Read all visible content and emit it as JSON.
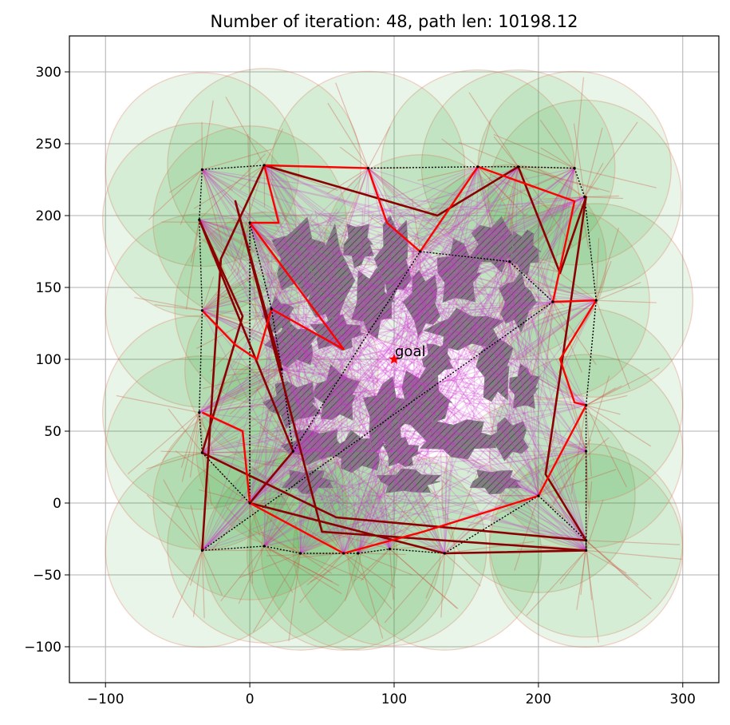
{
  "chart_data": {
    "type": "scatter",
    "title": "Number of iteration: 48, path len: 10198.12",
    "xlabel": "",
    "ylabel": "",
    "xlim": [
      -125,
      325
    ],
    "ylim": [
      -125,
      325
    ],
    "grid": true,
    "xticks": [
      -100,
      0,
      100,
      200,
      300
    ],
    "yticks": [
      -100,
      -50,
      0,
      50,
      100,
      150,
      200,
      250,
      300
    ],
    "goal": {
      "x": 100,
      "y": 100,
      "label": "goal"
    },
    "colors": {
      "obstacle_fill": "#808080",
      "obstacle_hatch": "#3a3a3a",
      "sensing_disc": "#2ca02c",
      "disc_edge": "#e07050",
      "visibility_rays": "#cc33cc",
      "path_primary": "#ff0000",
      "path_secondary": "#8b0000",
      "graph_edges": "#000000",
      "goal_marker": "#ff0000"
    },
    "sample_points": [
      {
        "x": -33,
        "y": -33
      },
      {
        "x": 10,
        "y": -30
      },
      {
        "x": 35,
        "y": -35
      },
      {
        "x": 65,
        "y": -35
      },
      {
        "x": 75,
        "y": -35
      },
      {
        "x": 97,
        "y": -32
      },
      {
        "x": 135,
        "y": -35
      },
      {
        "x": 200,
        "y": 5
      },
      {
        "x": 233,
        "y": -26
      },
      {
        "x": 233,
        "y": -33
      },
      {
        "x": 233,
        "y": 36
      },
      {
        "x": 233,
        "y": 68
      },
      {
        "x": 240,
        "y": 141
      },
      {
        "x": 232,
        "y": 213
      },
      {
        "x": 225,
        "y": 233
      },
      {
        "x": 186,
        "y": 234
      },
      {
        "x": 158,
        "y": 234
      },
      {
        "x": 82,
        "y": 233
      },
      {
        "x": 10,
        "y": 235
      },
      {
        "x": -33,
        "y": 232
      },
      {
        "x": -35,
        "y": 197
      },
      {
        "x": -33,
        "y": 134
      },
      {
        "x": -35,
        "y": 63
      },
      {
        "x": -33,
        "y": 35
      },
      {
        "x": 0,
        "y": 0
      },
      {
        "x": 0,
        "y": 195
      },
      {
        "x": 15,
        "y": 135
      },
      {
        "x": 22,
        "y": 93
      },
      {
        "x": 30,
        "y": 36
      },
      {
        "x": 118,
        "y": 175
      },
      {
        "x": 180,
        "y": 168
      },
      {
        "x": 210,
        "y": 140
      }
    ],
    "path_primary": [
      {
        "x": -33,
        "y": 134
      },
      {
        "x": -10,
        "y": 110
      },
      {
        "x": 5,
        "y": 100
      },
      {
        "x": 15,
        "y": 135
      },
      {
        "x": 65,
        "y": 107
      },
      {
        "x": 0,
        "y": 195
      },
      {
        "x": 20,
        "y": 195
      },
      {
        "x": 10,
        "y": 235
      },
      {
        "x": 82,
        "y": 233
      },
      {
        "x": 95,
        "y": 195
      },
      {
        "x": 118,
        "y": 175
      },
      {
        "x": 158,
        "y": 234
      },
      {
        "x": 225,
        "y": 210
      },
      {
        "x": 210,
        "y": 140
      },
      {
        "x": 240,
        "y": 141
      },
      {
        "x": 215,
        "y": 100
      },
      {
        "x": 225,
        "y": 70
      },
      {
        "x": 233,
        "y": 68
      },
      {
        "x": 200,
        "y": 5
      },
      {
        "x": 120,
        "y": -20
      },
      {
        "x": 65,
        "y": -35
      },
      {
        "x": 0,
        "y": 0
      },
      {
        "x": -5,
        "y": 50
      },
      {
        "x": -33,
        "y": 63
      }
    ],
    "path_secondary": [
      {
        "x": -33,
        "y": -33
      },
      {
        "x": -20,
        "y": 170
      },
      {
        "x": 10,
        "y": 235
      },
      {
        "x": 130,
        "y": 200
      },
      {
        "x": 186,
        "y": 234
      },
      {
        "x": 215,
        "y": 160
      },
      {
        "x": 233,
        "y": 213
      },
      {
        "x": 205,
        "y": 20
      },
      {
        "x": 233,
        "y": -26
      },
      {
        "x": 60,
        "y": -10
      },
      {
        "x": -33,
        "y": 35
      },
      {
        "x": -5,
        "y": 130
      },
      {
        "x": -35,
        "y": 197
      },
      {
        "x": 30,
        "y": 36
      },
      {
        "x": 0,
        "y": 0
      },
      {
        "x": 135,
        "y": -35
      },
      {
        "x": 233,
        "y": -33
      },
      {
        "x": 50,
        "y": -20
      },
      {
        "x": -10,
        "y": 210
      },
      {
        "x": 22,
        "y": 93
      }
    ]
  }
}
